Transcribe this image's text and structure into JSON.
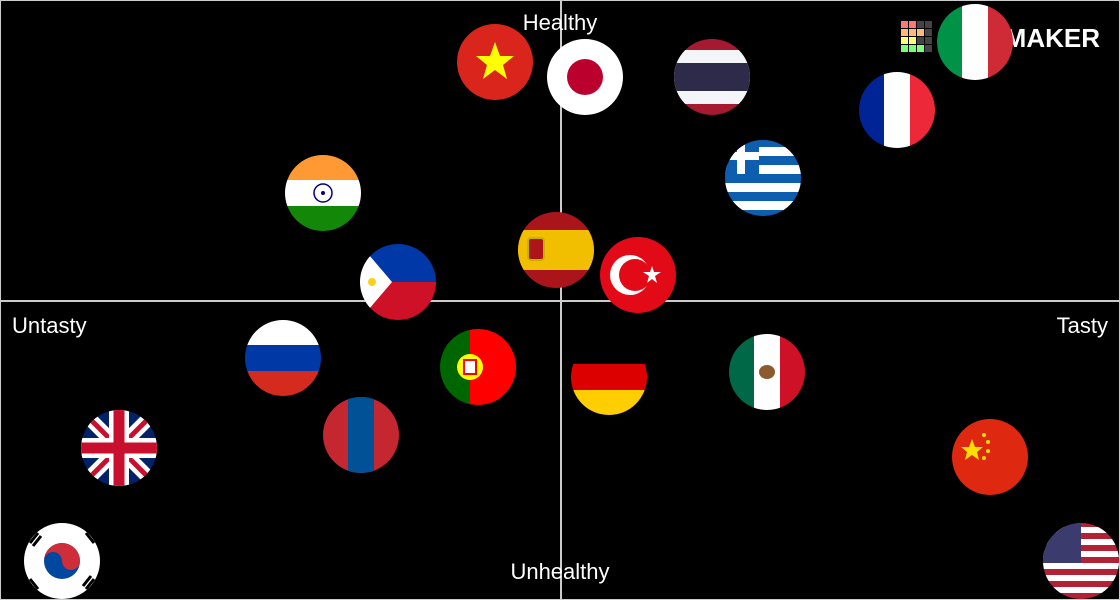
{
  "labels": {
    "top": "Healthy",
    "bottom": "Unhealthy",
    "left": "Untasty",
    "right": "Tasty"
  },
  "logo": "MAKER"
}
